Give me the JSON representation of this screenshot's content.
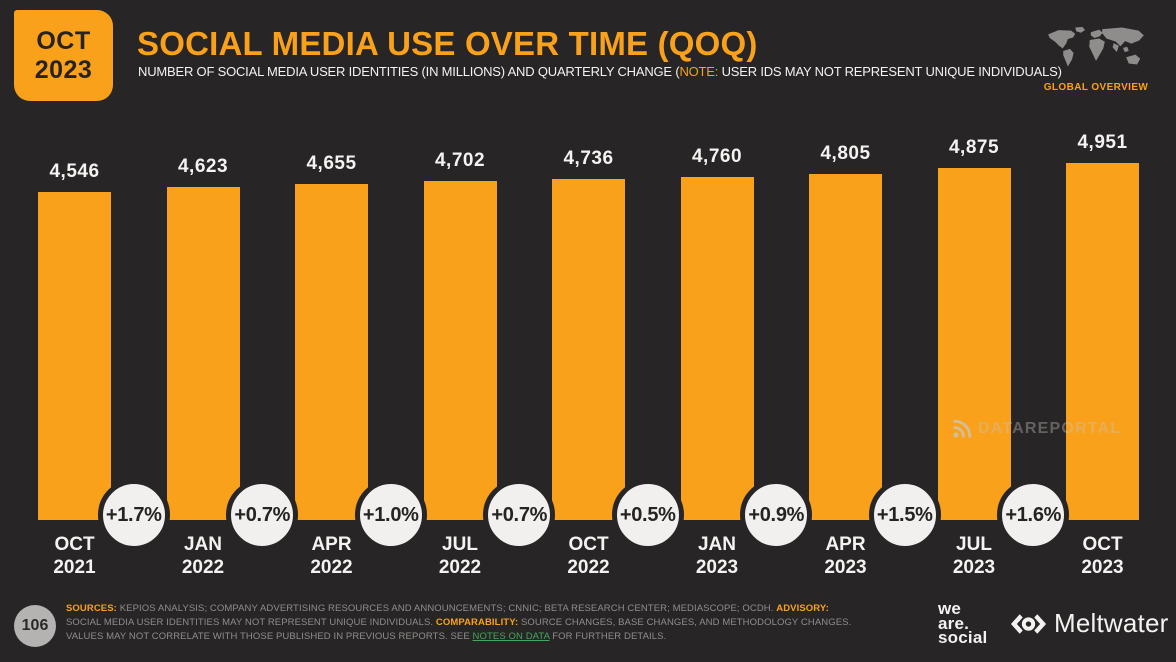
{
  "slide": {
    "badge": {
      "line1": "OCT",
      "line2": "2023"
    },
    "title": "SOCIAL MEDIA USE OVER TIME (QOQ)",
    "subtitle": {
      "pre": "NUMBER OF SOCIAL MEDIA USER IDENTITIES (IN MILLIONS) AND QUARTERLY CHANGE (",
      "note": "NOTE:",
      "post": " USER IDS MAY NOT REPRESENT UNIQUE INDIVIDUALS)"
    },
    "global_overview_label": "GLOBAL OVERVIEW",
    "watermark": "DATAREPORTAL",
    "page_number": "106"
  },
  "chart_data": {
    "type": "bar",
    "title": "SOCIAL MEDIA USE OVER TIME (QOQ)",
    "ylabel": "Social media user identities (millions)",
    "xlabel": "",
    "categories": [
      "OCT 2021",
      "JAN 2022",
      "APR 2022",
      "JUL 2022",
      "OCT 2022",
      "JAN 2023",
      "APR 2023",
      "JUL 2023",
      "OCT 2023"
    ],
    "values": [
      4546,
      4623,
      4655,
      4702,
      4736,
      4760,
      4805,
      4875,
      4951
    ],
    "value_labels": [
      "4,546",
      "4,623",
      "4,655",
      "4,702",
      "4,736",
      "4,760",
      "4,805",
      "4,875",
      "4,951"
    ],
    "qoq_changes": [
      "+1.7%",
      "+0.7%",
      "+1.0%",
      "+0.7%",
      "+0.5%",
      "+0.9%",
      "+1.5%",
      "+1.6%"
    ],
    "ylim": [
      0,
      4951
    ],
    "grid": false,
    "legend": "none",
    "bar_color": "#F9A11B"
  },
  "footer": {
    "sources_label": "SOURCES:",
    "sources_text": " KEPIOS ANALYSIS; COMPANY ADVERTISING RESOURCES AND ANNOUNCEMENTS; CNNIC; BETA RESEARCH CENTER; MEDIASCOPE; OCDH. ",
    "advisory_label": "ADVISORY:",
    "advisory_text": " SOCIAL MEDIA USER IDENTITIES MAY NOT REPRESENT UNIQUE INDIVIDUALS. ",
    "comparability_label": "COMPARABILITY:",
    "comparability_text": " SOURCE CHANGES, BASE CHANGES, AND METHODOLOGY CHANGES. VALUES MAY NOT CORRELATE WITH THOSE PUBLISHED IN PREVIOUS REPORTS. SEE ",
    "notes_link": "NOTES ON DATA",
    "notes_tail": " FOR FURTHER DETAILS."
  },
  "logos": {
    "we_are_social": [
      "we",
      "are.",
      "social"
    ],
    "meltwater": "Meltwater"
  },
  "colors": {
    "background": "#272525",
    "accent_orange": "#F9A11B",
    "circle_fill": "#F1F0EE",
    "text": "#F4F3F1",
    "muted_gray": "#908E8C",
    "link_green": "#43A85C"
  }
}
